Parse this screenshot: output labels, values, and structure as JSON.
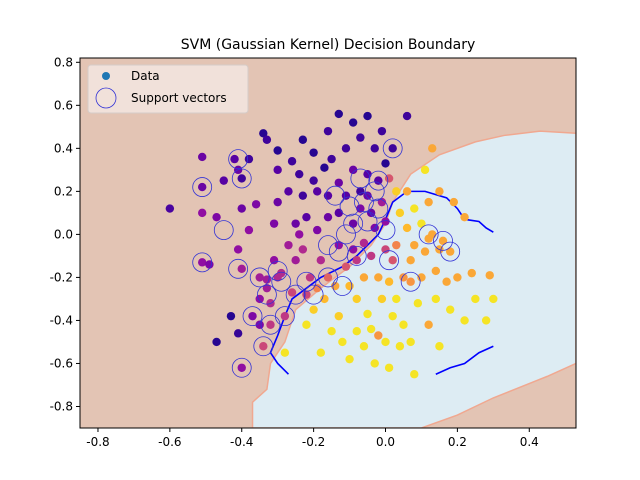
{
  "chart_data": {
    "type": "scatter",
    "title": "SVM (Gaussian Kernel) Decision Boundary",
    "xlabel": "",
    "ylabel": "",
    "xlim": [
      -0.85,
      0.53
    ],
    "ylim": [
      -0.9,
      0.82
    ],
    "xticks": [
      "-0.8",
      "-0.6",
      "-0.4",
      "-0.2",
      "0.0",
      "0.2",
      "0.4"
    ],
    "xtick_values": [
      -0.8,
      -0.6,
      -0.4,
      -0.2,
      0.0,
      0.2,
      0.4
    ],
    "yticks": [
      "-0.8",
      "-0.6",
      "-0.4",
      "-0.2",
      "0.0",
      "0.2",
      "0.4",
      "0.6",
      "0.8"
    ],
    "ytick_values": [
      -0.8,
      -0.6,
      -0.4,
      -0.2,
      0.0,
      0.2,
      0.4,
      0.6,
      0.8
    ],
    "legend": {
      "placement": "top-left",
      "entries": [
        "Data",
        "Support vectors"
      ]
    },
    "colors": {
      "class0_region": "#e3c4b4",
      "class1_region": "#ddecf3",
      "boundary": "#0000ff",
      "support_ring": "#3232d6",
      "legend_data_marker": "#1f77b4"
    },
    "regions": {
      "class1_polygon": [
        [
          -0.37,
          -0.9
        ],
        [
          -0.37,
          -0.78
        ],
        [
          -0.33,
          -0.72
        ],
        [
          -0.32,
          -0.6
        ],
        [
          -0.28,
          -0.5
        ],
        [
          -0.25,
          -0.35
        ],
        [
          -0.18,
          -0.25
        ],
        [
          -0.1,
          -0.15
        ],
        [
          -0.04,
          -0.05
        ],
        [
          0.0,
          0.05
        ],
        [
          0.02,
          0.15
        ],
        [
          0.07,
          0.28
        ],
        [
          0.15,
          0.37
        ],
        [
          0.25,
          0.43
        ],
        [
          0.33,
          0.46
        ],
        [
          0.43,
          0.48
        ],
        [
          0.53,
          0.47
        ],
        [
          0.53,
          -0.6
        ],
        [
          0.45,
          -0.66
        ],
        [
          0.3,
          -0.76
        ],
        [
          0.2,
          -0.84
        ],
        [
          0.1,
          -0.9
        ]
      ]
    },
    "boundary_lines": [
      [
        [
          -0.27,
          -0.65
        ],
        [
          -0.3,
          -0.6
        ],
        [
          -0.32,
          -0.55
        ],
        [
          -0.3,
          -0.47
        ],
        [
          -0.28,
          -0.38
        ],
        [
          -0.26,
          -0.3
        ],
        [
          -0.22,
          -0.25
        ],
        [
          -0.18,
          -0.2
        ],
        [
          -0.12,
          -0.15
        ],
        [
          -0.08,
          -0.1
        ],
        [
          -0.05,
          -0.05
        ],
        [
          -0.02,
          0.0
        ],
        [
          0.0,
          0.07
        ],
        [
          0.02,
          0.15
        ],
        [
          0.06,
          0.2
        ],
        [
          0.11,
          0.2
        ],
        [
          0.17,
          0.17
        ],
        [
          0.2,
          0.12
        ],
        [
          0.22,
          0.07
        ],
        [
          0.26,
          0.06
        ],
        [
          0.28,
          0.03
        ],
        [
          0.3,
          0.01
        ]
      ],
      [
        [
          0.14,
          -0.65
        ],
        [
          0.18,
          -0.62
        ],
        [
          0.22,
          -0.6
        ],
        [
          0.26,
          -0.55
        ],
        [
          0.3,
          -0.52
        ]
      ]
    ],
    "points": [
      {
        "x": -0.6,
        "y": 0.12,
        "c": 0.12
      },
      {
        "x": -0.51,
        "y": 0.36,
        "c": 0.2
      },
      {
        "x": -0.51,
        "y": 0.22,
        "c": 0.2
      },
      {
        "x": -0.51,
        "y": 0.1,
        "c": 0.3
      },
      {
        "x": -0.51,
        "y": -0.13,
        "c": 0.3
      },
      {
        "x": -0.49,
        "y": -0.14,
        "c": 0.25
      },
      {
        "x": -0.47,
        "y": 0.08,
        "c": 0.25
      },
      {
        "x": -0.47,
        "y": -0.5,
        "c": 0.05
      },
      {
        "x": -0.45,
        "y": 0.25,
        "c": 0.15
      },
      {
        "x": -0.43,
        "y": -0.38,
        "c": 0.05
      },
      {
        "x": -0.42,
        "y": 0.35,
        "c": 0.15
      },
      {
        "x": -0.41,
        "y": 0.3,
        "c": 0.2
      },
      {
        "x": -0.41,
        "y": -0.07,
        "c": 0.3
      },
      {
        "x": -0.41,
        "y": -0.46,
        "c": 0.08
      },
      {
        "x": -0.4,
        "y": 0.26,
        "c": 0.1
      },
      {
        "x": -0.4,
        "y": 0.12,
        "c": 0.2
      },
      {
        "x": -0.4,
        "y": -0.16,
        "c": 0.35
      },
      {
        "x": -0.4,
        "y": -0.62,
        "c": 0.3
      },
      {
        "x": -0.38,
        "y": 0.35,
        "c": 0.1
      },
      {
        "x": -0.38,
        "y": 0.02,
        "c": 0.3
      },
      {
        "x": -0.37,
        "y": -0.38,
        "c": 0.25
      },
      {
        "x": -0.36,
        "y": 0.14,
        "c": 0.25
      },
      {
        "x": -0.35,
        "y": -0.2,
        "c": 0.35
      },
      {
        "x": -0.35,
        "y": -0.3,
        "c": 0.3
      },
      {
        "x": -0.35,
        "y": -0.42,
        "c": 0.25
      },
      {
        "x": -0.34,
        "y": 0.47,
        "c": 0.05
      },
      {
        "x": -0.34,
        "y": -0.52,
        "c": 0.5
      },
      {
        "x": -0.33,
        "y": -0.21,
        "c": 0.35
      },
      {
        "x": -0.33,
        "y": -0.25,
        "c": 0.35
      },
      {
        "x": -0.33,
        "y": 0.44,
        "c": 0.1
      },
      {
        "x": -0.32,
        "y": -0.32,
        "c": 0.4
      },
      {
        "x": -0.32,
        "y": -0.42,
        "c": 0.45
      },
      {
        "x": -0.31,
        "y": 0.05,
        "c": 0.25
      },
      {
        "x": -0.31,
        "y": -0.12,
        "c": 0.3
      },
      {
        "x": -0.3,
        "y": 0.39,
        "c": 0.05
      },
      {
        "x": -0.3,
        "y": 0.3,
        "c": 0.15
      },
      {
        "x": -0.3,
        "y": 0.15,
        "c": 0.2
      },
      {
        "x": -0.3,
        "y": -0.2,
        "c": 0.4
      },
      {
        "x": -0.29,
        "y": -0.18,
        "c": 0.4
      },
      {
        "x": -0.28,
        "y": -0.38,
        "c": 0.45
      },
      {
        "x": -0.28,
        "y": -0.55,
        "c": 0.95
      },
      {
        "x": -0.27,
        "y": 0.2,
        "c": 0.15
      },
      {
        "x": -0.27,
        "y": -0.05,
        "c": 0.35
      },
      {
        "x": -0.26,
        "y": 0.34,
        "c": 0.1
      },
      {
        "x": -0.26,
        "y": -0.27,
        "c": 0.5
      },
      {
        "x": -0.25,
        "y": 0.05,
        "c": 0.2
      },
      {
        "x": -0.25,
        "y": -0.12,
        "c": 0.35
      },
      {
        "x": -0.24,
        "y": 0.28,
        "c": 0.1
      },
      {
        "x": -0.24,
        "y": 0.0,
        "c": 0.3
      },
      {
        "x": -0.23,
        "y": 0.44,
        "c": 0.05
      },
      {
        "x": -0.23,
        "y": 0.18,
        "c": 0.1
      },
      {
        "x": -0.23,
        "y": -0.07,
        "c": 0.4
      },
      {
        "x": -0.22,
        "y": 0.08,
        "c": 0.15
      },
      {
        "x": -0.22,
        "y": -0.28,
        "c": 0.5
      },
      {
        "x": -0.22,
        "y": -0.42,
        "c": 0.95
      },
      {
        "x": -0.21,
        "y": -0.2,
        "c": 0.45
      },
      {
        "x": -0.2,
        "y": 0.38,
        "c": 0.05
      },
      {
        "x": -0.2,
        "y": 0.25,
        "c": 0.1
      },
      {
        "x": -0.2,
        "y": -0.35,
        "c": 0.9
      },
      {
        "x": -0.19,
        "y": 0.2,
        "c": 0.15
      },
      {
        "x": -0.19,
        "y": 0.02,
        "c": 0.25
      },
      {
        "x": -0.19,
        "y": -0.25,
        "c": 0.7
      },
      {
        "x": -0.18,
        "y": -0.12,
        "c": 0.4
      },
      {
        "x": -0.18,
        "y": -0.55,
        "c": 0.95
      },
      {
        "x": -0.17,
        "y": 0.31,
        "c": 0.05
      },
      {
        "x": -0.17,
        "y": -0.3,
        "c": 0.85
      },
      {
        "x": -0.16,
        "y": 0.48,
        "c": 0.1
      },
      {
        "x": -0.16,
        "y": 0.18,
        "c": 0.15
      },
      {
        "x": -0.16,
        "y": 0.08,
        "c": 0.2
      },
      {
        "x": -0.16,
        "y": -0.2,
        "c": 0.6
      },
      {
        "x": -0.15,
        "y": 0.35,
        "c": 0.1
      },
      {
        "x": -0.15,
        "y": -0.45,
        "c": 0.95
      },
      {
        "x": -0.14,
        "y": -0.24,
        "c": 0.8
      },
      {
        "x": -0.13,
        "y": 0.56,
        "c": 0.05
      },
      {
        "x": -0.13,
        "y": 0.24,
        "c": 0.2
      },
      {
        "x": -0.13,
        "y": 0.1,
        "c": 0.15
      },
      {
        "x": -0.13,
        "y": -0.05,
        "c": 0.3
      },
      {
        "x": -0.13,
        "y": -0.38,
        "c": 0.9
      },
      {
        "x": -0.12,
        "y": -0.5,
        "c": 0.95
      },
      {
        "x": -0.11,
        "y": 0.4,
        "c": 0.1
      },
      {
        "x": -0.11,
        "y": 0.18,
        "c": 0.15
      },
      {
        "x": -0.11,
        "y": -0.15,
        "c": 0.55
      },
      {
        "x": -0.1,
        "y": -0.24,
        "c": 0.85
      },
      {
        "x": -0.1,
        "y": -0.58,
        "c": 0.95
      },
      {
        "x": -0.09,
        "y": 0.52,
        "c": 0.05
      },
      {
        "x": -0.09,
        "y": 0.3,
        "c": 0.2
      },
      {
        "x": -0.09,
        "y": 0.05,
        "c": 0.2
      },
      {
        "x": -0.09,
        "y": -0.07,
        "c": 0.3
      },
      {
        "x": -0.08,
        "y": -0.12,
        "c": 0.45
      },
      {
        "x": -0.08,
        "y": -0.3,
        "c": 0.9
      },
      {
        "x": -0.08,
        "y": -0.45,
        "c": 0.95
      },
      {
        "x": -0.07,
        "y": 0.45,
        "c": 0.1
      },
      {
        "x": -0.07,
        "y": 0.2,
        "c": 0.1
      },
      {
        "x": -0.07,
        "y": 0.12,
        "c": 0.25
      },
      {
        "x": -0.06,
        "y": -0.04,
        "c": 0.4
      },
      {
        "x": -0.06,
        "y": -0.2,
        "c": 0.8
      },
      {
        "x": -0.06,
        "y": -0.52,
        "c": 0.95
      },
      {
        "x": -0.05,
        "y": 0.55,
        "c": 0.05
      },
      {
        "x": -0.05,
        "y": 0.28,
        "c": 0.15
      },
      {
        "x": -0.05,
        "y": 0.18,
        "c": 0.2
      },
      {
        "x": -0.05,
        "y": -0.37,
        "c": 0.95
      },
      {
        "x": -0.04,
        "y": 0.1,
        "c": 0.2
      },
      {
        "x": -0.04,
        "y": -0.1,
        "c": 0.45
      },
      {
        "x": -0.04,
        "y": -0.44,
        "c": 0.95
      },
      {
        "x": -0.03,
        "y": 0.4,
        "c": 0.1
      },
      {
        "x": -0.03,
        "y": 0.03,
        "c": 0.25
      },
      {
        "x": -0.03,
        "y": -0.6,
        "c": 0.95
      },
      {
        "x": -0.02,
        "y": 0.25,
        "c": 0.15
      },
      {
        "x": -0.02,
        "y": -0.2,
        "c": 0.8
      },
      {
        "x": -0.02,
        "y": -0.47,
        "c": 0.75
      },
      {
        "x": -0.01,
        "y": 0.48,
        "c": 0.1
      },
      {
        "x": -0.01,
        "y": 0.15,
        "c": 0.35
      },
      {
        "x": -0.01,
        "y": -0.3,
        "c": 0.9
      },
      {
        "x": 0.0,
        "y": 0.33,
        "c": 0.05
      },
      {
        "x": 0.0,
        "y": 0.06,
        "c": 0.3
      },
      {
        "x": 0.0,
        "y": -0.07,
        "c": 0.5
      },
      {
        "x": 0.0,
        "y": -0.5,
        "c": 0.95
      },
      {
        "x": 0.01,
        "y": 0.26,
        "c": 0.55
      },
      {
        "x": 0.01,
        "y": -0.22,
        "c": 0.85
      },
      {
        "x": 0.01,
        "y": -0.62,
        "c": 0.95
      },
      {
        "x": 0.02,
        "y": 0.4,
        "c": 0.1
      },
      {
        "x": 0.02,
        "y": -0.12,
        "c": 0.55
      },
      {
        "x": 0.02,
        "y": -0.38,
        "c": 0.95
      },
      {
        "x": 0.03,
        "y": 0.2,
        "c": 0.9
      },
      {
        "x": 0.03,
        "y": -0.05,
        "c": 0.7
      },
      {
        "x": 0.03,
        "y": -0.3,
        "c": 0.95
      },
      {
        "x": 0.04,
        "y": 0.1,
        "c": 0.9
      },
      {
        "x": 0.04,
        "y": -0.52,
        "c": 0.95
      },
      {
        "x": 0.05,
        "y": -0.2,
        "c": 0.75
      },
      {
        "x": 0.05,
        "y": -0.42,
        "c": 0.95
      },
      {
        "x": 0.06,
        "y": 0.55,
        "c": 0.1
      },
      {
        "x": 0.06,
        "y": 0.2,
        "c": 0.8
      },
      {
        "x": 0.06,
        "y": 0.03,
        "c": 0.85
      },
      {
        "x": 0.07,
        "y": -0.12,
        "c": 0.8
      },
      {
        "x": 0.07,
        "y": -0.22,
        "c": 0.75
      },
      {
        "x": 0.07,
        "y": -0.5,
        "c": 0.95
      },
      {
        "x": 0.08,
        "y": 0.12,
        "c": 0.95
      },
      {
        "x": 0.08,
        "y": -0.05,
        "c": 0.8
      },
      {
        "x": 0.08,
        "y": -0.65,
        "c": 0.95
      },
      {
        "x": 0.09,
        "y": -0.32,
        "c": 0.95
      },
      {
        "x": 0.1,
        "y": 0.05,
        "c": 0.95
      },
      {
        "x": 0.1,
        "y": -0.2,
        "c": 0.8
      },
      {
        "x": 0.11,
        "y": 0.3,
        "c": 0.95
      },
      {
        "x": 0.11,
        "y": -0.08,
        "c": 0.8
      },
      {
        "x": 0.12,
        "y": -0.42,
        "c": 0.8
      },
      {
        "x": 0.12,
        "y": 0.15,
        "c": 0.8
      },
      {
        "x": 0.12,
        "y": -0.02,
        "c": 0.8
      },
      {
        "x": 0.13,
        "y": 0.4,
        "c": 0.8
      },
      {
        "x": 0.13,
        "y": 0.0,
        "c": 0.8
      },
      {
        "x": 0.14,
        "y": -0.17,
        "c": 0.8
      },
      {
        "x": 0.14,
        "y": -0.3,
        "c": 0.95
      },
      {
        "x": 0.15,
        "y": 0.2,
        "c": 0.8
      },
      {
        "x": 0.15,
        "y": -0.07,
        "c": 0.8
      },
      {
        "x": 0.15,
        "y": -0.52,
        "c": 0.95
      },
      {
        "x": 0.16,
        "y": -0.03,
        "c": 0.8
      },
      {
        "x": 0.17,
        "y": -0.22,
        "c": 0.8
      },
      {
        "x": 0.18,
        "y": -0.08,
        "c": 0.8
      },
      {
        "x": 0.18,
        "y": -0.35,
        "c": 0.95
      },
      {
        "x": 0.19,
        "y": 0.15,
        "c": 0.8
      },
      {
        "x": 0.2,
        "y": -0.2,
        "c": 0.8
      },
      {
        "x": 0.22,
        "y": 0.08,
        "c": 0.8
      },
      {
        "x": 0.22,
        "y": -0.4,
        "c": 0.95
      },
      {
        "x": 0.24,
        "y": -0.18,
        "c": 0.8
      },
      {
        "x": 0.25,
        "y": -0.3,
        "c": 0.95
      },
      {
        "x": 0.28,
        "y": -0.4,
        "c": 0.95
      },
      {
        "x": 0.29,
        "y": -0.19,
        "c": 0.8
      },
      {
        "x": 0.3,
        "y": -0.3,
        "c": 0.95
      }
    ],
    "support_vectors": [
      {
        "x": -0.51,
        "y": 0.22
      },
      {
        "x": -0.51,
        "y": -0.13
      },
      {
        "x": -0.45,
        "y": 0.02
      },
      {
        "x": -0.41,
        "y": 0.35
      },
      {
        "x": -0.4,
        "y": 0.26
      },
      {
        "x": -0.41,
        "y": -0.16
      },
      {
        "x": -0.4,
        "y": -0.62
      },
      {
        "x": -0.37,
        "y": -0.38
      },
      {
        "x": -0.35,
        "y": -0.2
      },
      {
        "x": -0.34,
        "y": -0.52
      },
      {
        "x": -0.33,
        "y": -0.28
      },
      {
        "x": -0.32,
        "y": -0.42
      },
      {
        "x": -0.3,
        "y": -0.17
      },
      {
        "x": -0.29,
        "y": -0.22
      },
      {
        "x": -0.28,
        "y": -0.38
      },
      {
        "x": -0.25,
        "y": -0.28
      },
      {
        "x": -0.22,
        "y": -0.22
      },
      {
        "x": -0.2,
        "y": -0.28
      },
      {
        "x": -0.16,
        "y": -0.2
      },
      {
        "x": -0.16,
        "y": -0.05
      },
      {
        "x": -0.14,
        "y": 0.18
      },
      {
        "x": -0.13,
        "y": -0.08
      },
      {
        "x": -0.12,
        "y": -0.24
      },
      {
        "x": -0.11,
        "y": 0.0
      },
      {
        "x": -0.1,
        "y": 0.13
      },
      {
        "x": -0.09,
        "y": 0.05
      },
      {
        "x": -0.08,
        "y": -0.1
      },
      {
        "x": -0.07,
        "y": 0.26
      },
      {
        "x": -0.06,
        "y": 0.15
      },
      {
        "x": -0.05,
        "y": 0.06
      },
      {
        "x": -0.03,
        "y": 0.2
      },
      {
        "x": -0.02,
        "y": 0.12
      },
      {
        "x": -0.02,
        "y": 0.25
      },
      {
        "x": 0.0,
        "y": 0.02
      },
      {
        "x": 0.01,
        "y": -0.12
      },
      {
        "x": 0.02,
        "y": 0.4
      },
      {
        "x": 0.07,
        "y": -0.22
      },
      {
        "x": 0.12,
        "y": 0.0
      },
      {
        "x": 0.16,
        "y": -0.03
      },
      {
        "x": 0.18,
        "y": -0.08
      }
    ]
  }
}
